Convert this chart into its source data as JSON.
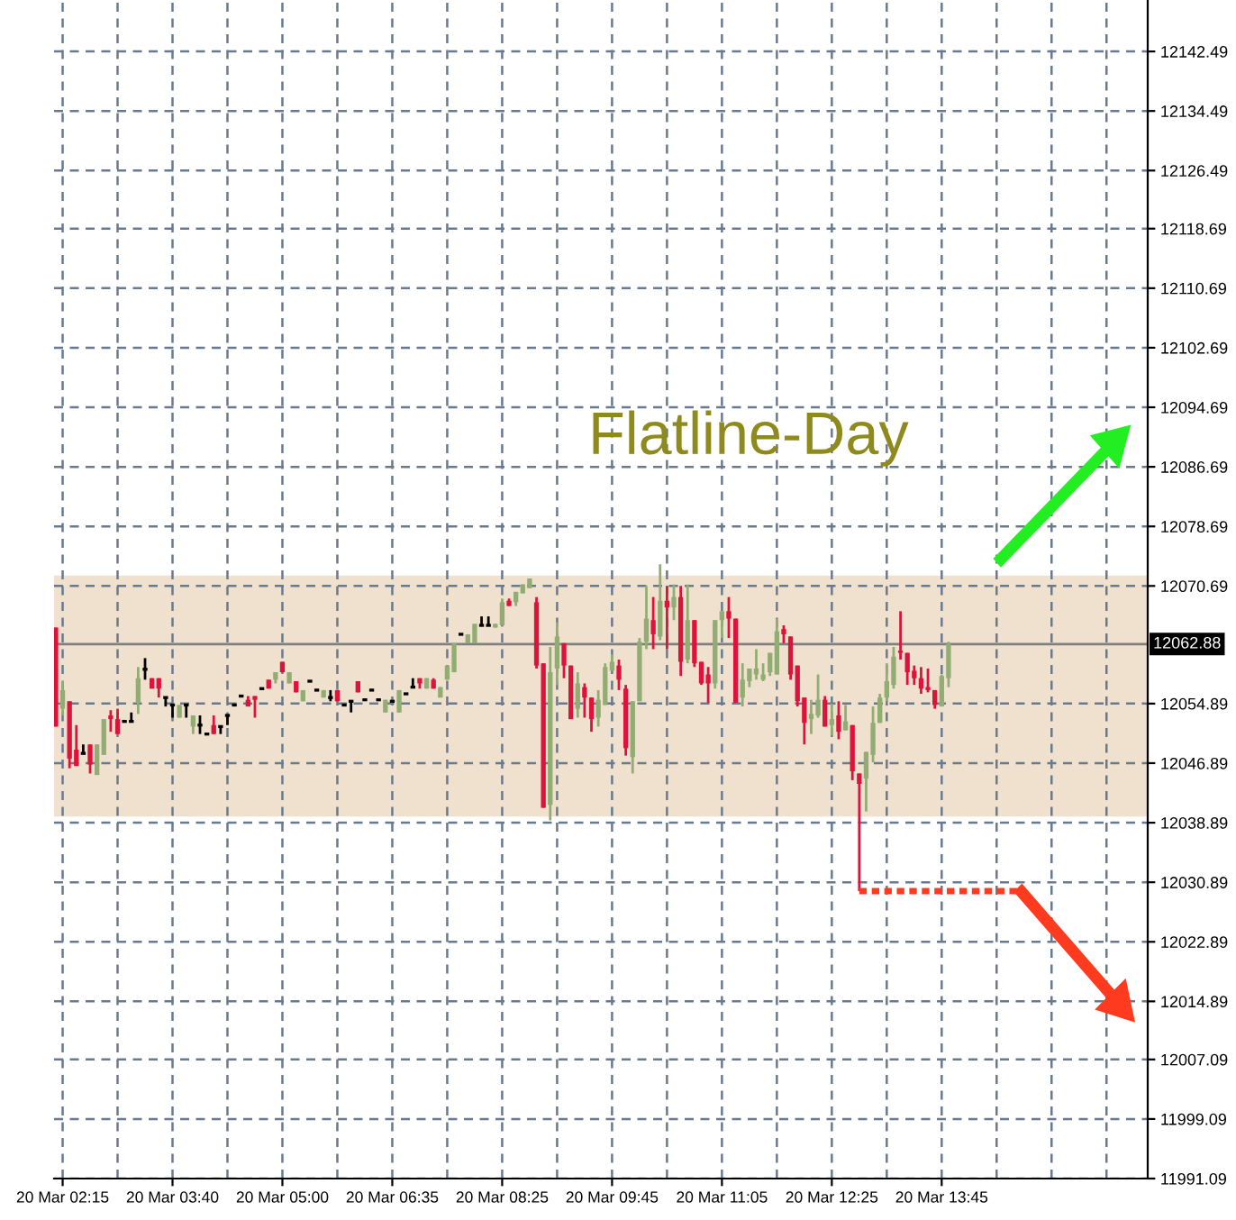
{
  "chart_data": {
    "type": "candlestick",
    "annotations": [
      "Flatline-Day"
    ],
    "categories": [
      null,
      "20 Mar 02:15",
      null,
      null,
      null,
      null,
      null,
      null,
      null,
      null,
      null,
      null,
      null,
      null,
      null,
      null,
      null,
      "20 Mar 03:40",
      null,
      null,
      null,
      null,
      null,
      null,
      null,
      null,
      null,
      null,
      null,
      null,
      null,
      null,
      null,
      "20 Mar 05:00",
      null,
      null,
      null,
      null,
      null,
      null,
      null,
      null,
      null,
      null,
      null,
      null,
      null,
      null,
      null,
      "20 Mar 06:35",
      null,
      null,
      null,
      null,
      null,
      null,
      null,
      null,
      null,
      null,
      null,
      null,
      null,
      null,
      null,
      "20 Mar 08:25",
      null,
      null,
      null,
      null,
      null,
      null,
      null,
      null,
      null,
      null,
      null,
      null,
      null,
      null,
      null,
      "20 Mar 09:45",
      null,
      null,
      null,
      null,
      null,
      null,
      null,
      null,
      null,
      null,
      null,
      null,
      null,
      null,
      null,
      "20 Mar 11:05",
      null,
      null,
      null,
      null,
      null,
      null,
      null,
      null,
      null,
      null,
      null,
      null,
      null,
      null,
      null,
      "20 Mar 12:25",
      null,
      null,
      null,
      null,
      null,
      null,
      null,
      null,
      null,
      null,
      null,
      null,
      null,
      null,
      null,
      "20 Mar 13:45",
      null,
      null,
      null,
      null,
      null,
      null,
      null,
      null,
      null,
      null,
      null,
      null,
      null,
      null,
      null,
      null,
      null,
      null,
      null,
      null,
      null,
      null,
      null,
      null,
      null,
      null,
      null,
      null,
      null
    ],
    "ohlc": [
      [
        12065.1,
        12065.1,
        12051.8,
        12051.8
      ],
      [
        12054.2,
        12057.9,
        12053.3,
        12056.7
      ],
      [
        12055.2,
        12055.2,
        12046.2,
        12047.5
      ],
      [
        12048.7,
        12052.0,
        12046.5,
        12046.5
      ],
      [
        12048.2,
        12049.4,
        12048.2,
        12048.2
      ],
      [
        12049.4,
        12049.4,
        12045.5,
        12046.7
      ],
      [
        12045.3,
        12049.4,
        12045.3,
        12049.4
      ],
      [
        12048.0,
        12052.8,
        12048.0,
        12052.8
      ],
      [
        12053.3,
        12054.0,
        12051.1,
        12052.8
      ],
      [
        12052.8,
        12054.2,
        12050.8,
        12050.8
      ],
      [
        12052.5,
        12052.5,
        12052.5,
        12052.5
      ],
      [
        12052.5,
        12053.7,
        12052.5,
        12052.5
      ],
      [
        12055.0,
        12059.8,
        12053.5,
        12058.3
      ],
      [
        12059.5,
        12061.0,
        12058.1,
        12059.5
      ],
      [
        12058.3,
        12058.3,
        12056.9,
        12056.9
      ],
      [
        12058.3,
        12058.3,
        12055.7,
        12056.9
      ],
      [
        12055.7,
        12055.7,
        12054.5,
        12055.7
      ],
      [
        12054.7,
        12054.7,
        12053.0,
        12054.7
      ],
      [
        12053.0,
        12054.7,
        12053.0,
        12054.7
      ],
      [
        12054.7,
        12054.7,
        12053.0,
        12054.7
      ],
      [
        12051.8,
        12053.3,
        12050.8,
        12053.3
      ],
      [
        12052.0,
        12053.3,
        12050.8,
        12052.0
      ],
      [
        12050.8,
        12050.8,
        12050.8,
        12050.8
      ],
      [
        12052.0,
        12053.3,
        12050.8,
        12050.8
      ],
      [
        12051.8,
        12051.8,
        12050.8,
        12051.8
      ],
      [
        12053.3,
        12053.3,
        12052.0,
        12053.3
      ],
      [
        12054.7,
        12054.7,
        12054.7,
        12054.7
      ],
      [
        12055.9,
        12055.9,
        12055.9,
        12055.9
      ],
      [
        12055.4,
        12055.9,
        12054.5,
        12054.5
      ],
      [
        12055.9,
        12055.9,
        12053.0,
        12055.4
      ],
      [
        12056.9,
        12056.9,
        12056.9,
        12056.9
      ],
      [
        12058.1,
        12058.1,
        12056.9,
        12056.9
      ],
      [
        12058.1,
        12059.1,
        12057.6,
        12059.1
      ],
      [
        12060.5,
        12060.5,
        12059.1,
        12059.1
      ],
      [
        12057.6,
        12059.1,
        12057.6,
        12059.1
      ],
      [
        12057.9,
        12057.9,
        12056.4,
        12056.4
      ],
      [
        12055.2,
        12056.7,
        12055.2,
        12056.7
      ],
      [
        12057.9,
        12057.9,
        12057.9,
        12057.9
      ],
      [
        12056.7,
        12056.7,
        12056.7,
        12056.7
      ],
      [
        12055.7,
        12056.7,
        12055.7,
        12056.7
      ],
      [
        12055.7,
        12056.7,
        12055.2,
        12055.7
      ],
      [
        12056.7,
        12056.7,
        12055.2,
        12055.2
      ],
      [
        12054.7,
        12054.7,
        12054.7,
        12054.7
      ],
      [
        12055.2,
        12055.2,
        12053.7,
        12055.2
      ],
      [
        12057.9,
        12057.9,
        12056.4,
        12056.4
      ],
      [
        12055.4,
        12055.4,
        12055.4,
        12055.4
      ],
      [
        12056.7,
        12056.7,
        12056.7,
        12056.7
      ],
      [
        12055.4,
        12055.4,
        12055.4,
        12055.4
      ],
      [
        12053.7,
        12055.4,
        12053.7,
        12055.4
      ],
      [
        12055.2,
        12055.2,
        12055.2,
        12055.2
      ],
      [
        12053.7,
        12056.7,
        12053.7,
        12056.7
      ],
      [
        12056.2,
        12056.2,
        12056.2,
        12056.2
      ],
      [
        12057.1,
        12058.3,
        12057.1,
        12057.1
      ],
      [
        12058.3,
        12058.3,
        12056.9,
        12057.6
      ],
      [
        12056.9,
        12058.3,
        12056.9,
        12058.3
      ],
      [
        12058.1,
        12058.3,
        12056.9,
        12056.9
      ],
      [
        12055.7,
        12057.1,
        12055.7,
        12057.1
      ],
      [
        12058.1,
        12060.0,
        12058.1,
        12060.0
      ],
      [
        12059.1,
        12063.0,
        12059.1,
        12063.0
      ],
      [
        12064.2,
        12064.2,
        12064.2,
        12064.2
      ],
      [
        12063.0,
        12064.2,
        12063.0,
        12064.2
      ],
      [
        12063.0,
        12065.6,
        12063.0,
        12065.6
      ],
      [
        12065.4,
        12066.6,
        12065.4,
        12065.4
      ],
      [
        12065.4,
        12066.6,
        12065.4,
        12065.4
      ],
      [
        12065.1,
        12065.6,
        12065.1,
        12065.6
      ],
      [
        12065.4,
        12069.0,
        12065.4,
        12068.5
      ],
      [
        12068.7,
        12069.0,
        12068.0,
        12068.0
      ],
      [
        12068.5,
        12069.9,
        12068.0,
        12069.9
      ],
      [
        12069.7,
        12070.9,
        12069.7,
        12070.9
      ],
      [
        12070.4,
        12071.7,
        12070.4,
        12071.7
      ],
      [
        12068.5,
        12069.2,
        12059.6,
        12060.0
      ],
      [
        12060.3,
        12060.3,
        12040.9,
        12040.9
      ],
      [
        12041.3,
        12062.5,
        12039.2,
        12059.1
      ],
      [
        12059.6,
        12065.8,
        12057.4,
        12063.9
      ],
      [
        12063.0,
        12063.0,
        12058.3,
        12060.0
      ],
      [
        12060.0,
        12060.0,
        12052.8,
        12052.8
      ],
      [
        12054.2,
        12059.1,
        12053.0,
        12057.6
      ],
      [
        12057.1,
        12057.6,
        12053.0,
        12055.7
      ],
      [
        12055.7,
        12055.7,
        12051.1,
        12052.8
      ],
      [
        12053.0,
        12056.7,
        12051.8,
        12055.4
      ],
      [
        12054.7,
        12060.3,
        12054.7,
        12059.8
      ],
      [
        12059.3,
        12061.5,
        12059.3,
        12060.5
      ],
      [
        12060.0,
        12060.8,
        12056.7,
        12058.1
      ],
      [
        12056.9,
        12057.4,
        12047.9,
        12048.9
      ],
      [
        12047.7,
        12055.2,
        12045.5,
        12055.2
      ],
      [
        12055.2,
        12063.7,
        12055.2,
        12063.2
      ],
      [
        12063.2,
        12070.7,
        12062.2,
        12066.3
      ],
      [
        12066.1,
        12069.2,
        12062.2,
        12064.2
      ],
      [
        12063.9,
        12073.6,
        12063.4,
        12068.7
      ],
      [
        12068.7,
        12070.7,
        12062.2,
        12067.8
      ],
      [
        12067.8,
        12070.9,
        12066.1,
        12069.2
      ],
      [
        12069.2,
        12070.7,
        12058.6,
        12060.5
      ],
      [
        12060.8,
        12070.9,
        12060.3,
        12066.1
      ],
      [
        12066.1,
        12066.1,
        12059.8,
        12060.3
      ],
      [
        12060.5,
        12060.5,
        12057.4,
        12057.6
      ],
      [
        12058.8,
        12059.8,
        12055.0,
        12057.6
      ],
      [
        12057.6,
        12066.1,
        12056.9,
        12066.1
      ],
      [
        12066.1,
        12067.3,
        12063.7,
        12067.3
      ],
      [
        12067.3,
        12069.2,
        12063.7,
        12066.3
      ],
      [
        12066.3,
        12066.3,
        12055.0,
        12055.0
      ],
      [
        12055.7,
        12060.3,
        12054.5,
        12058.1
      ],
      [
        12057.9,
        12059.6,
        12057.1,
        12059.6
      ],
      [
        12058.8,
        12062.2,
        12058.1,
        12059.6
      ],
      [
        12058.1,
        12060.3,
        12057.9,
        12058.8
      ],
      [
        12059.1,
        12061.7,
        12058.6,
        12061.7
      ],
      [
        12058.8,
        12066.3,
        12058.8,
        12064.6
      ],
      [
        12064.9,
        12065.4,
        12063.0,
        12064.2
      ],
      [
        12063.9,
        12063.9,
        12058.1,
        12058.8
      ],
      [
        12060.0,
        12060.0,
        12054.5,
        12055.2
      ],
      [
        12055.7,
        12055.7,
        12049.4,
        12052.3
      ],
      [
        12052.8,
        12055.4,
        12050.8,
        12053.5
      ],
      [
        12053.3,
        12058.8,
        12053.0,
        12055.4
      ],
      [
        12055.4,
        12055.9,
        12051.8,
        12051.8
      ],
      [
        12052.0,
        12054.9,
        12050.6,
        12052.8
      ],
      [
        12053.3,
        12055.2,
        12050.1,
        12051.1
      ],
      [
        12051.3,
        12054.7,
        12051.3,
        12052.5
      ],
      [
        12052.0,
        12052.0,
        12044.6,
        12045.8
      ],
      [
        12045.5,
        12045.5,
        12029.7,
        12044.1
      ],
      [
        12044.8,
        12048.4,
        12040.4,
        12048.4
      ],
      [
        12048.0,
        12054.5,
        12047.0,
        12052.3
      ],
      [
        12052.3,
        12056.2,
        12052.3,
        12055.7
      ],
      [
        12055.7,
        12060.3,
        12055.2,
        12057.9
      ],
      [
        12057.4,
        12062.5,
        12056.9,
        12061.2
      ],
      [
        12062.0,
        12067.3,
        12060.8,
        12061.7
      ],
      [
        12061.7,
        12061.7,
        12057.4,
        12059.1
      ],
      [
        12059.3,
        12060.0,
        12057.4,
        12058.3
      ],
      [
        12058.3,
        12059.8,
        12056.2,
        12056.9
      ],
      [
        12057.1,
        12059.6,
        12056.4,
        12056.7
      ],
      [
        12056.7,
        12056.7,
        12054.2,
        12054.7
      ],
      [
        12054.5,
        12058.8,
        12054.5,
        12058.6
      ],
      [
        12058.3,
        12063.2,
        12057.1,
        12062.9
      ],
      null,
      null,
      null,
      null,
      null,
      null,
      null,
      null,
      null,
      null,
      null,
      null,
      null,
      null,
      null,
      null,
      null,
      null,
      null,
      null,
      null,
      null,
      null,
      null,
      null,
      null,
      null,
      null
    ],
    "colors": [
      "#dc143c",
      "#92ad74",
      "#dc143c",
      "#dc143c",
      "#000000",
      "#dc143c",
      "#92ad74",
      "#92ad74",
      "#dc143c",
      "#dc143c",
      "#000000",
      "#000000",
      "#92ad74",
      "#000000",
      "#dc143c",
      "#dc143c",
      "#000000",
      "#000000",
      "#92ad74",
      "#000000",
      "#92ad74",
      "#000000",
      "#000000",
      "#dc143c",
      "#000000",
      "#000000",
      "#000000",
      "#000000",
      "#dc143c",
      "#dc143c",
      "#000000",
      "#dc143c",
      "#92ad74",
      "#dc143c",
      "#92ad74",
      "#dc143c",
      "#92ad74",
      "#000000",
      "#000000",
      "#92ad74",
      "#000000",
      "#dc143c",
      "#000000",
      "#000000",
      "#dc143c",
      "#000000",
      "#000000",
      "#000000",
      "#92ad74",
      "#000000",
      "#92ad74",
      "#000000",
      "#000000",
      "#dc143c",
      "#92ad74",
      "#dc143c",
      "#92ad74",
      "#92ad74",
      "#92ad74",
      "#000000",
      "#92ad74",
      "#92ad74",
      "#000000",
      "#000000",
      "#92ad74",
      "#92ad74",
      "#dc143c",
      "#92ad74",
      "#92ad74",
      "#92ad74",
      "#dc143c",
      "#dc143c",
      "#92ad74",
      "#92ad74",
      "#dc143c",
      "#dc143c",
      "#92ad74",
      "#dc143c",
      "#dc143c",
      "#92ad74",
      "#92ad74",
      "#92ad74",
      "#dc143c",
      "#dc143c",
      "#92ad74",
      "#92ad74",
      "#92ad74",
      "#dc143c",
      "#92ad74",
      "#dc143c",
      "#92ad74",
      "#dc143c",
      "#92ad74",
      "#dc143c",
      "#dc143c",
      "#dc143c",
      "#92ad74",
      "#92ad74",
      "#dc143c",
      "#dc143c",
      "#92ad74",
      "#92ad74",
      "#92ad74",
      "#92ad74",
      "#92ad74",
      "#92ad74",
      "#dc143c",
      "#dc143c",
      "#dc143c",
      "#dc143c",
      "#92ad74",
      "#92ad74",
      "#dc143c",
      "#92ad74",
      "#dc143c",
      "#92ad74",
      "#dc143c",
      "#dc143c",
      "#92ad74",
      "#92ad74",
      "#92ad74",
      "#92ad74",
      "#92ad74",
      "#dc143c",
      "#dc143c",
      "#dc143c",
      "#dc143c",
      "#dc143c",
      "#dc143c",
      "#92ad74",
      "#92ad74",
      null,
      null,
      null,
      null,
      null,
      null,
      null,
      null,
      null,
      null,
      null,
      null,
      null,
      null,
      null,
      null,
      null,
      null,
      null,
      null,
      null,
      null,
      null,
      null,
      null,
      null,
      null,
      null
    ],
    "ylim": [
      11991.09,
      12149.4
    ],
    "yticks": [
      11991.09,
      11999.09,
      12007.09,
      12014.89,
      12022.89,
      12030.89,
      12038.89,
      12046.89,
      12054.89,
      12070.69,
      12078.69,
      12086.69,
      12094.69,
      12102.69,
      12110.69,
      12118.69,
      12126.49,
      12134.49,
      12142.49
    ],
    "ref_lines": [
      {
        "axis": "y",
        "value": 12062.88,
        "label": "12062.88",
        "color": "#808080"
      }
    ],
    "bands": [
      {
        "axis": "y",
        "from": 12039.7,
        "to": 12072.1,
        "color": "#efe1cd"
      }
    ],
    "grid": true,
    "legend": false
  }
}
